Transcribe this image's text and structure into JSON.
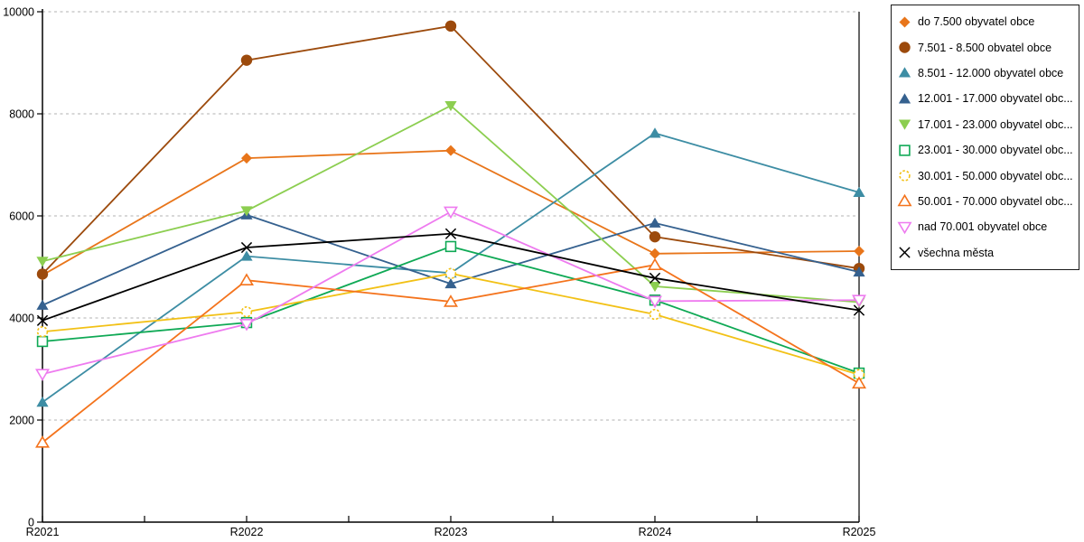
{
  "chart_data": {
    "type": "line",
    "title": "",
    "xlabel": "",
    "ylabel": "",
    "categories": [
      "R2021",
      "R2022",
      "R2023",
      "R2024",
      "R2025"
    ],
    "ylim": [
      0,
      10000
    ],
    "y_ticks": [
      0,
      2000,
      4000,
      6000,
      8000,
      10000
    ],
    "grid": "horizontal-dashed",
    "legend_position": "outside-top-right",
    "series": [
      {
        "label": "do 7.500 obyvatel obce",
        "marker": "diamond",
        "fill": "solid",
        "color": "#E8751A",
        "values": [
          4840,
          7130,
          7280,
          5260,
          5310
        ]
      },
      {
        "label": "7.501 - 8.500 obvatel obce",
        "marker": "circle",
        "fill": "solid",
        "color": "#9C4A0C",
        "values": [
          4860,
          9050,
          9720,
          5590,
          4970
        ]
      },
      {
        "label": "8.501 - 12.000 obyvatel obce",
        "marker": "triangle-up",
        "fill": "solid",
        "color": "#3D8DA4",
        "values": [
          2350,
          5210,
          4880,
          7620,
          6460
        ]
      },
      {
        "label": "12.001 - 17.000 obyvatel obc...",
        "marker": "triangle-up",
        "fill": "solid",
        "color": "#35618F",
        "values": [
          4250,
          6020,
          4670,
          5860,
          4900
        ]
      },
      {
        "label": "17.001 - 23.000 obyvatel obc...",
        "marker": "triangle-down",
        "fill": "solid",
        "color": "#8CCE50",
        "values": [
          5110,
          6100,
          8160,
          4620,
          4310
        ]
      },
      {
        "label": "23.001 - 30.000 obyvatel obc...",
        "marker": "square",
        "fill": "hollow",
        "color": "#0FA955",
        "values": [
          3540,
          3910,
          5400,
          4350,
          2920
        ]
      },
      {
        "label": "30.001 - 50.000 obyvatel obc...",
        "marker": "circle",
        "fill": "hollow",
        "dashed": true,
        "color": "#F2C116",
        "values": [
          3730,
          4120,
          4870,
          4070,
          2890
        ]
      },
      {
        "label": "50.001 - 70.000 obyvatel obc...",
        "marker": "triangle-up",
        "fill": "hollow",
        "color": "#F4731C",
        "values": [
          1560,
          4740,
          4320,
          5040,
          2720
        ]
      },
      {
        "label": "nad 70.001 obyvatel obce",
        "marker": "triangle-down",
        "fill": "hollow",
        "color": "#EE7BEF",
        "values": [
          2900,
          3880,
          6080,
          4330,
          4350
        ]
      },
      {
        "label": "všechna města",
        "marker": "x",
        "fill": "line",
        "color": "#000000",
        "values": [
          3950,
          5380,
          5650,
          4780,
          4150
        ]
      }
    ]
  }
}
